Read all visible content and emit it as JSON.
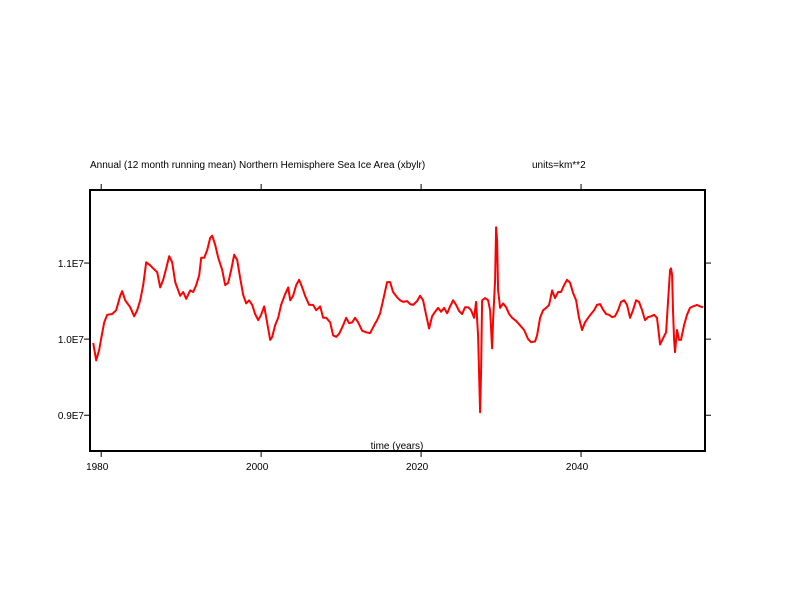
{
  "chart_data": {
    "type": "line",
    "title": "Annual (12 month running mean) Northern Hemisphere Sea Ice Area (xbylr)",
    "units_label": "units=km**2",
    "xlabel": "time (years)",
    "ylabel": "",
    "value_multiplier": 1000000,
    "xlim": [
      1978.6,
      2055.5
    ],
    "ylim": [
      8.53,
      11.96
    ],
    "x_ticks": [
      {
        "value": 1980,
        "label": "1980"
      },
      {
        "value": 2000,
        "label": "2000"
      },
      {
        "value": 2020,
        "label": "2020"
      },
      {
        "value": 2040,
        "label": "2040"
      }
    ],
    "y_ticks": [
      {
        "value": 9.0,
        "label": "0.9E7"
      },
      {
        "value": 10.0,
        "label": "1.0E7"
      },
      {
        "value": 11.0,
        "label": "1.1E7"
      }
    ],
    "grid": false,
    "series": [
      {
        "name": "NH sea ice area",
        "color": "#ff0000",
        "x": [
          1979.0,
          1979.38,
          1979.75,
          1980.0,
          1980.38,
          1980.75,
          1981.38,
          1981.88,
          1982.38,
          1982.63,
          1983.0,
          1983.63,
          1984.13,
          1984.5,
          1984.88,
          1985.25,
          1985.63,
          1986.13,
          1986.5,
          1987.0,
          1987.38,
          1987.75,
          1988.13,
          1988.5,
          1988.88,
          1989.25,
          1989.88,
          1990.25,
          1990.63,
          1991.13,
          1991.5,
          1991.88,
          1992.25,
          1992.5,
          1992.88,
          1993.25,
          1993.63,
          1993.88,
          1994.25,
          1994.63,
          1995.13,
          1995.5,
          1995.88,
          1996.25,
          1996.63,
          1997.0,
          1997.38,
          1997.75,
          1998.13,
          1998.5,
          1998.88,
          1999.25,
          1999.63,
          2000.0,
          2000.38,
          2000.75,
          2001.13,
          2001.38,
          2001.75,
          2002.13,
          2002.5,
          2003.0,
          2003.38,
          2003.63,
          2004.0,
          2004.38,
          2004.75,
          2005.13,
          2005.5,
          2006.0,
          2006.5,
          2006.88,
          2007.38,
          2007.75,
          2008.13,
          2008.63,
          2009.0,
          2009.38,
          2009.75,
          2010.25,
          2010.63,
          2011.0,
          2011.38,
          2011.75,
          2012.13,
          2012.63,
          2013.13,
          2013.63,
          2014.13,
          2014.5,
          2014.88,
          2015.25,
          2015.75,
          2016.13,
          2016.5,
          2017.0,
          2017.38,
          2017.75,
          2018.25,
          2018.63,
          2019.0,
          2019.5,
          2019.88,
          2020.25,
          2020.63,
          2021.0,
          2021.38,
          2021.75,
          2022.13,
          2022.5,
          2022.88,
          2023.25,
          2023.63,
          2024.0,
          2024.38,
          2024.75,
          2025.13,
          2025.5,
          2025.88,
          2026.25,
          2026.63,
          2026.88,
          2027.13,
          2027.38,
          2027.5,
          2027.63,
          2028.0,
          2028.38,
          2028.63,
          2028.88,
          2029.0,
          2029.25,
          2029.38,
          2029.5,
          2029.63,
          2029.88,
          2030.25,
          2030.63,
          2031.0,
          2031.38,
          2031.88,
          2032.38,
          2032.88,
          2033.38,
          2033.75,
          2034.25,
          2034.5,
          2034.88,
          2035.25,
          2035.63,
          2036.0,
          2036.38,
          2036.75,
          2037.13,
          2037.5,
          2037.88,
          2038.25,
          2038.63,
          2039.0,
          2039.38,
          2039.75,
          2040.13,
          2040.5,
          2040.88,
          2041.25,
          2041.63,
          2042.0,
          2042.38,
          2042.75,
          2043.13,
          2043.5,
          2043.88,
          2044.25,
          2044.63,
          2045.0,
          2045.38,
          2045.75,
          2046.13,
          2046.5,
          2046.88,
          2047.25,
          2047.63,
          2048.0,
          2048.38,
          2048.75,
          2049.13,
          2049.5,
          2049.88,
          2050.25,
          2050.63,
          2050.88,
          2051.13,
          2051.25,
          2051.38,
          2051.5,
          2051.63,
          2051.75,
          2052.0,
          2052.25,
          2052.5,
          2052.88,
          2053.25,
          2053.63,
          2054.0,
          2054.5,
          2054.88,
          2055.25
        ],
        "values": [
          9.95,
          9.72,
          9.86,
          10.01,
          10.22,
          10.32,
          10.33,
          10.38,
          10.57,
          10.63,
          10.51,
          10.42,
          10.3,
          10.38,
          10.51,
          10.71,
          11.01,
          10.97,
          10.93,
          10.88,
          10.68,
          10.78,
          10.93,
          11.09,
          11.01,
          10.75,
          10.57,
          10.62,
          10.53,
          10.64,
          10.62,
          10.71,
          10.84,
          11.07,
          11.07,
          11.17,
          11.33,
          11.36,
          11.24,
          11.07,
          10.91,
          10.71,
          10.74,
          10.91,
          11.11,
          11.04,
          10.8,
          10.58,
          10.47,
          10.51,
          10.45,
          10.33,
          10.25,
          10.32,
          10.43,
          10.22,
          9.99,
          10.03,
          10.18,
          10.28,
          10.45,
          10.59,
          10.68,
          10.51,
          10.57,
          10.71,
          10.78,
          10.68,
          10.57,
          10.45,
          10.45,
          10.38,
          10.43,
          10.28,
          10.28,
          10.22,
          10.05,
          10.03,
          10.07,
          10.18,
          10.28,
          10.21,
          10.22,
          10.28,
          10.22,
          10.11,
          10.09,
          10.08,
          10.18,
          10.25,
          10.34,
          10.51,
          10.75,
          10.75,
          10.62,
          10.55,
          10.51,
          10.49,
          10.5,
          10.46,
          10.45,
          10.5,
          10.57,
          10.51,
          10.32,
          10.14,
          10.3,
          10.36,
          10.41,
          10.36,
          10.41,
          10.34,
          10.43,
          10.51,
          10.45,
          10.37,
          10.33,
          10.42,
          10.42,
          10.38,
          10.28,
          10.49,
          10.04,
          9.04,
          9.59,
          10.51,
          10.54,
          10.51,
          10.38,
          9.88,
          10.25,
          10.78,
          11.47,
          11.3,
          10.64,
          10.41,
          10.47,
          10.42,
          10.33,
          10.28,
          10.24,
          10.18,
          10.12,
          10.0,
          9.96,
          9.97,
          10.05,
          10.28,
          10.38,
          10.41,
          10.45,
          10.64,
          10.54,
          10.62,
          10.62,
          10.71,
          10.78,
          10.74,
          10.61,
          10.51,
          10.28,
          10.12,
          10.22,
          10.28,
          10.33,
          10.38,
          10.45,
          10.46,
          10.39,
          10.33,
          10.32,
          10.29,
          10.3,
          10.38,
          10.49,
          10.51,
          10.45,
          10.28,
          10.38,
          10.51,
          10.49,
          10.38,
          10.25,
          10.29,
          10.3,
          10.32,
          10.28,
          9.93,
          10.01,
          10.09,
          10.51,
          10.91,
          10.93,
          10.84,
          10.38,
          9.99,
          9.83,
          10.12,
          9.99,
          9.99,
          10.18,
          10.32,
          10.41,
          10.43,
          10.45,
          10.43,
          10.42
        ]
      }
    ]
  }
}
